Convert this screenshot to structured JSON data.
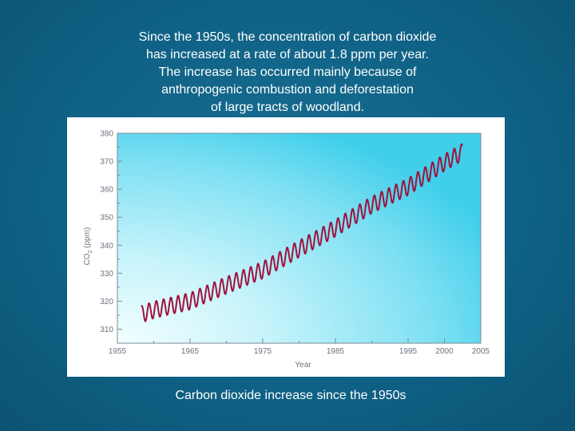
{
  "slide": {
    "text_lines": [
      "Since the 1950s, the concentration of carbon dioxide",
      "has increased at a rate of about 1.8 ppm per year.",
      "The increase has occurred mainly because of",
      "anthropogenic combustion and deforestation",
      "of large tracts of woodland."
    ],
    "caption": "Carbon dioxide increase since the 1950s"
  },
  "colors": {
    "slide_background": "#0d5e80",
    "series_line": "#a0123c",
    "plot_gradient_light": "#e8fcff",
    "plot_gradient_dark": "#3fd0ee"
  },
  "chart_data": {
    "type": "line",
    "xlabel": "Year",
    "ylabel_prefix": "CO",
    "ylabel_sub": "2",
    "ylabel_suffix": " (ppm)",
    "xlim": [
      1955,
      2005
    ],
    "ylim": [
      305,
      380
    ],
    "xticks": [
      "1955",
      "1965",
      "1975",
      "1985",
      "1995",
      "2000",
      "2005"
    ],
    "xtick_values": [
      1955,
      1965,
      1975,
      1985,
      1995,
      2000,
      2005
    ],
    "yticks": [
      310,
      320,
      330,
      340,
      350,
      360,
      370,
      380
    ],
    "series": [
      {
        "start_year": 1958.3,
        "end_year": 2002.5,
        "seasonal_amplitude_ppm": 3.0,
        "trend": [
          {
            "year": 1958,
            "ppm": 315.0
          },
          {
            "year": 1960,
            "ppm": 316.9
          },
          {
            "year": 1965,
            "ppm": 320.0
          },
          {
            "year": 1970,
            "ppm": 325.7
          },
          {
            "year": 1975,
            "ppm": 331.1
          },
          {
            "year": 1980,
            "ppm": 338.7
          },
          {
            "year": 1985,
            "ppm": 346.1
          },
          {
            "year": 1990,
            "ppm": 354.4
          },
          {
            "year": 1995,
            "ppm": 360.9
          },
          {
            "year": 2000,
            "ppm": 369.5
          },
          {
            "year": 2002.5,
            "ppm": 373.3
          }
        ]
      }
    ]
  }
}
